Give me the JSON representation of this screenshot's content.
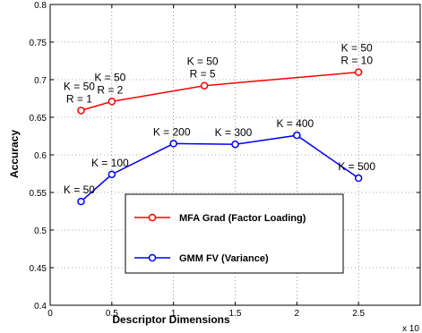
{
  "chart_data": {
    "type": "line",
    "xlabel": "Descriptor Dimensions",
    "ylabel": "Accuracy",
    "x_multiplier_label": "x 10",
    "xlim": [
      0,
      3.0
    ],
    "ylim": [
      0.4,
      0.8
    ],
    "xticks": [
      "0",
      "0.5",
      "1",
      "1.5",
      "2",
      "2.5"
    ],
    "yticks": [
      "0.4",
      "0.45",
      "0.5",
      "0.55",
      "0.6",
      "0.65",
      "0.7",
      "0.75",
      "0.8"
    ],
    "grid": true,
    "legend_position": "inside center-right",
    "series": [
      {
        "name": "MFA Grad (Factor Loading)",
        "color": "#ff0000",
        "x": [
          0.25,
          0.5,
          1.25,
          2.5
        ],
        "values": [
          0.659,
          0.671,
          0.692,
          0.71
        ],
        "labels": [
          [
            "K = 50",
            "R = 1"
          ],
          [
            "K = 50",
            "R = 2"
          ],
          [
            "K = 50",
            "R = 5"
          ],
          [
            "K = 50",
            "R = 10"
          ]
        ]
      },
      {
        "name": "GMM FV (Variance)",
        "color": "#0000ff",
        "x": [
          0.25,
          0.5,
          1.0,
          1.5,
          2.0,
          2.5
        ],
        "values": [
          0.538,
          0.574,
          0.615,
          0.614,
          0.626,
          0.569
        ],
        "labels": [
          [
            "K = 50"
          ],
          [
            "K = 100"
          ],
          [
            "K = 200"
          ],
          [
            "K = 300"
          ],
          [
            "K = 400"
          ],
          [
            "K = 500"
          ]
        ]
      }
    ]
  }
}
